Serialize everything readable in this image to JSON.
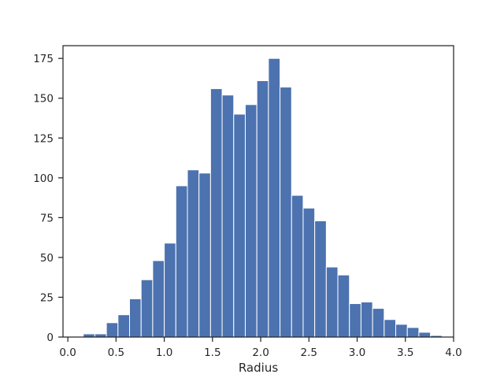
{
  "chart_data": {
    "type": "bar",
    "subtype": "histogram",
    "title": "",
    "xlabel": "Radius",
    "ylabel": "",
    "xlim": [
      -0.05,
      4.0
    ],
    "ylim": [
      0,
      183
    ],
    "grid": false,
    "legend": "none",
    "bar_color": "#4c72b0",
    "bar_edge_color": "#ffffff",
    "axes_color": "#262626",
    "x_ticks": [
      0.0,
      0.5,
      1.0,
      1.5,
      2.0,
      2.5,
      3.0,
      3.5,
      4.0
    ],
    "x_tick_labels": [
      "0.0",
      "0.5",
      "1.0",
      "1.5",
      "2.0",
      "2.5",
      "3.0",
      "3.5",
      "4.0"
    ],
    "y_ticks": [
      0,
      25,
      50,
      75,
      100,
      125,
      150,
      175
    ],
    "y_tick_labels": [
      "0",
      "25",
      "50",
      "75",
      "100",
      "125",
      "150",
      "175"
    ],
    "bins": [
      {
        "x0": 0.16,
        "x1": 0.28,
        "count": 2
      },
      {
        "x0": 0.28,
        "x1": 0.4,
        "count": 2
      },
      {
        "x0": 0.4,
        "x1": 0.52,
        "count": 9
      },
      {
        "x0": 0.52,
        "x1": 0.64,
        "count": 14
      },
      {
        "x0": 0.64,
        "x1": 0.76,
        "count": 24
      },
      {
        "x0": 0.76,
        "x1": 0.88,
        "count": 36
      },
      {
        "x0": 0.88,
        "x1": 1.0,
        "count": 48
      },
      {
        "x0": 1.0,
        "x1": 1.12,
        "count": 59
      },
      {
        "x0": 1.12,
        "x1": 1.24,
        "count": 95
      },
      {
        "x0": 1.24,
        "x1": 1.36,
        "count": 105
      },
      {
        "x0": 1.36,
        "x1": 1.48,
        "count": 103
      },
      {
        "x0": 1.48,
        "x1": 1.6,
        "count": 156
      },
      {
        "x0": 1.6,
        "x1": 1.72,
        "count": 152
      },
      {
        "x0": 1.72,
        "x1": 1.84,
        "count": 140
      },
      {
        "x0": 1.84,
        "x1": 1.96,
        "count": 146
      },
      {
        "x0": 1.96,
        "x1": 2.08,
        "count": 161
      },
      {
        "x0": 2.08,
        "x1": 2.2,
        "count": 175
      },
      {
        "x0": 2.2,
        "x1": 2.32,
        "count": 157
      },
      {
        "x0": 2.32,
        "x1": 2.44,
        "count": 89
      },
      {
        "x0": 2.44,
        "x1": 2.56,
        "count": 81
      },
      {
        "x0": 2.56,
        "x1": 2.68,
        "count": 73
      },
      {
        "x0": 2.68,
        "x1": 2.8,
        "count": 44
      },
      {
        "x0": 2.8,
        "x1": 2.92,
        "count": 39
      },
      {
        "x0": 2.92,
        "x1": 3.04,
        "count": 21
      },
      {
        "x0": 3.04,
        "x1": 3.16,
        "count": 22
      },
      {
        "x0": 3.16,
        "x1": 3.28,
        "count": 18
      },
      {
        "x0": 3.28,
        "x1": 3.4,
        "count": 11
      },
      {
        "x0": 3.4,
        "x1": 3.52,
        "count": 8
      },
      {
        "x0": 3.52,
        "x1": 3.64,
        "count": 6
      },
      {
        "x0": 3.64,
        "x1": 3.76,
        "count": 3
      },
      {
        "x0": 3.76,
        "x1": 3.88,
        "count": 1
      }
    ]
  }
}
